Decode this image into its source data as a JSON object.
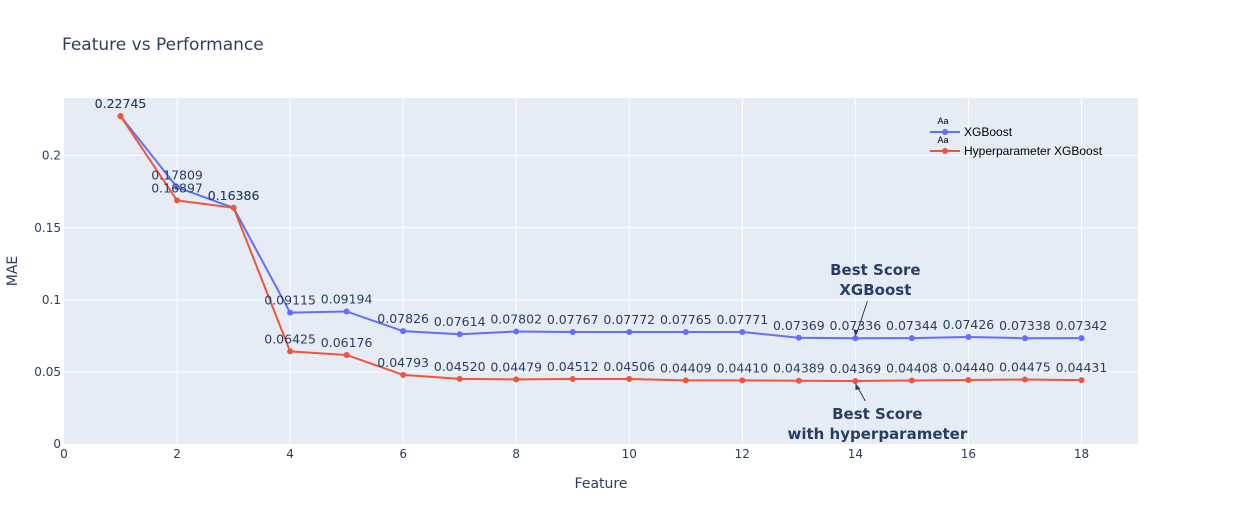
{
  "chart_data": {
    "type": "line",
    "title": "Feature vs Performance",
    "xlabel": "Feature",
    "ylabel": "MAE",
    "xlim": [
      0,
      19
    ],
    "ylim": [
      0,
      0.24
    ],
    "x_ticks": [
      0,
      2,
      4,
      6,
      8,
      10,
      12,
      14,
      16,
      18
    ],
    "x_tick_labels": [
      "0",
      "2",
      "4",
      "6",
      "8",
      "10",
      "12",
      "14",
      "16",
      "18"
    ],
    "y_ticks": [
      0,
      0.05,
      0.1,
      0.15,
      0.2
    ],
    "y_tick_labels": [
      "0",
      "0.05",
      "0.1",
      "0.15",
      "0.2"
    ],
    "grid": true,
    "legend_position": "top-right",
    "x": [
      1,
      2,
      3,
      4,
      5,
      6,
      7,
      8,
      9,
      10,
      11,
      12,
      13,
      14,
      15,
      16,
      17,
      18
    ],
    "series": [
      {
        "name": "XGBoost",
        "color": "#636efa",
        "values": [
          0.22745,
          0.17809,
          0.16386,
          0.09115,
          0.09194,
          0.07826,
          0.07614,
          0.07802,
          0.07767,
          0.07772,
          0.07765,
          0.07771,
          0.07369,
          0.07336,
          0.07344,
          0.07426,
          0.07338,
          0.07342
        ],
        "labels": [
          "0.22745",
          "0.17809",
          "0.16386",
          "0.09115",
          "0.09194",
          "0.07826",
          "0.07614",
          "0.07802",
          "0.07767",
          "0.07772",
          "0.07765",
          "0.07771",
          "0.07369",
          "0.07336",
          "0.07344",
          "0.07426",
          "0.07338",
          "0.07342"
        ]
      },
      {
        "name": "Hyperparameter XGBoost",
        "color": "#ef553b",
        "values": [
          0.22745,
          0.16897,
          0.16386,
          0.06425,
          0.06176,
          0.04793,
          0.0452,
          0.04479,
          0.04512,
          0.04506,
          0.04409,
          0.0441,
          0.04389,
          0.04369,
          0.04408,
          0.0444,
          0.04475,
          0.04431
        ],
        "labels": [
          "0.22745",
          "0.16897",
          "0.16386",
          "0.06425",
          "0.06176",
          "0.04793",
          "0.04520",
          "0.04479",
          "0.04512",
          "0.04506",
          "0.04409",
          "0.04410",
          "0.04389",
          "0.04369",
          "0.04408",
          "0.04440",
          "0.04475",
          "0.04431"
        ]
      }
    ],
    "annotations": [
      {
        "lines": [
          "Best Score",
          "XGBoost"
        ],
        "x": 14,
        "y": 0.07336,
        "placement": "above"
      },
      {
        "lines": [
          "Best Score",
          "with hyperparameter"
        ],
        "x": 14,
        "y": 0.04369,
        "placement": "below"
      }
    ],
    "legend_marker_text": "Aa"
  },
  "colors": {
    "plot_background": "#e5ecf6",
    "grid": "#ffffff",
    "text": "#2a3f5f"
  }
}
